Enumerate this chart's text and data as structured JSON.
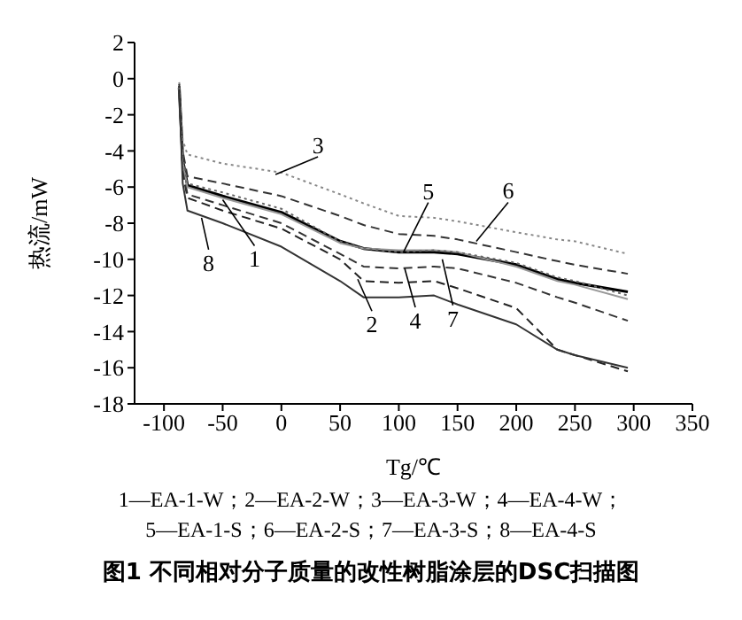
{
  "chart_data": {
    "type": "line",
    "title": "图1  不同相对分子质量的改性树脂涂层的DSC扫描图",
    "xlabel": "Tg/℃",
    "ylabel": "热流/mW",
    "x": [
      -87,
      -84,
      -80,
      -50,
      0,
      50,
      70,
      100,
      130,
      150,
      200,
      235,
      250,
      295
    ],
    "series": [
      {
        "color": "#000000",
        "line_style": "solid",
        "values": [
          -0.5,
          -4.5,
          -5.9,
          -6.5,
          -7.4,
          -9.0,
          -9.4,
          -9.6,
          -9.6,
          -9.7,
          -10.3,
          -11.1,
          -11.3,
          -11.8
        ]
      },
      {
        "color": "#222222",
        "line_style": "dashed",
        "values": [
          -0.4,
          -5.2,
          -6.6,
          -7.3,
          -8.3,
          -10.0,
          -11.2,
          -11.3,
          -11.2,
          -11.6,
          -12.7,
          -15.0,
          -15.3,
          -16.2
        ]
      },
      {
        "color": "#888888",
        "line_style": "dotted",
        "values": [
          -0.2,
          -3.4,
          -4.2,
          -4.7,
          -5.2,
          -6.4,
          -6.9,
          -7.6,
          -7.7,
          -7.9,
          -8.5,
          -8.9,
          -9.0,
          -9.7
        ]
      },
      {
        "color": "#333333",
        "line_style": "dashed",
        "values": [
          -0.4,
          -5.0,
          -6.4,
          -7.0,
          -8.0,
          -9.7,
          -10.4,
          -10.5,
          -10.4,
          -10.5,
          -11.3,
          -12.1,
          -12.4,
          -13.4
        ]
      },
      {
        "color": "#999999",
        "line_style": "solid",
        "values": [
          -0.5,
          -4.6,
          -6.0,
          -6.6,
          -7.5,
          -9.1,
          -9.4,
          -9.5,
          -9.5,
          -9.6,
          -10.4,
          -11.2,
          -11.4,
          -12.2
        ]
      },
      {
        "color": "#333333",
        "line_style": "dashed",
        "values": [
          -0.3,
          -4.0,
          -5.4,
          -5.8,
          -6.5,
          -7.6,
          -8.1,
          -8.6,
          -8.7,
          -8.9,
          -9.6,
          -10.1,
          -10.3,
          -10.8
        ]
      },
      {
        "color": "#666666",
        "line_style": "dotted",
        "values": [
          -0.5,
          -4.4,
          -5.8,
          -6.3,
          -7.2,
          -9.0,
          -9.4,
          -9.6,
          -9.5,
          -9.6,
          -10.2,
          -11.0,
          -11.2,
          -12.0
        ]
      },
      {
        "color": "#333333",
        "line_style": "solid",
        "values": [
          -0.6,
          -5.8,
          -7.3,
          -8.0,
          -9.3,
          -11.2,
          -12.1,
          -12.1,
          -12.0,
          -12.5,
          -13.6,
          -15.0,
          -15.3,
          -16.0
        ]
      }
    ],
    "xlim": [
      -125,
      350
    ],
    "xticks": [
      -100,
      -50,
      0,
      50,
      100,
      150,
      200,
      250,
      300,
      350
    ],
    "ylim": [
      -18,
      2
    ],
    "yticks": [
      2,
      0,
      -2,
      -4,
      -6,
      -8,
      -10,
      -12,
      -14,
      -16,
      -18
    ],
    "grid": false,
    "marker": "none",
    "annotations": [
      {
        "text": "3",
        "x": -5,
        "y": -5.3
      },
      {
        "text": "5",
        "x": 104,
        "y": -9.6
      },
      {
        "text": "6",
        "x": 166,
        "y": -9.0
      },
      {
        "text": "1",
        "x": -50,
        "y": -6.7
      },
      {
        "text": "8",
        "x": -68,
        "y": -7.7
      },
      {
        "text": "2",
        "x": 65,
        "y": -11.1
      },
      {
        "text": "4",
        "x": 105,
        "y": -10.5
      },
      {
        "text": "7",
        "x": 137,
        "y": -10.0
      },
      "1—EA-1-W；2—EA-2-W；3—EA-3-W；4—EA-4-W；",
      "5—EA-1-S；6—EA-2-S；7—EA-3-S；8—EA-4-S"
    ]
  }
}
